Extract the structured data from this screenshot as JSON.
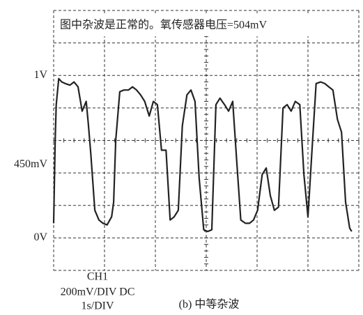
{
  "chart_data": {
    "type": "line",
    "annotation": "图中杂波是正常的。氧传感器电压=504mV",
    "channel": "CH1",
    "vertical_scale": "200mV/DIV DC",
    "time_scale": "1s/DIV",
    "caption": "(b) 中等杂波",
    "xlim": [
      0,
      6
    ],
    "ylim": [
      -0.2,
      1.4
    ],
    "xgrid": [
      0,
      1,
      2,
      3,
      4,
      5,
      6
    ],
    "ygrid": [
      -0.2,
      0,
      0.2,
      0.4,
      0.6,
      0.8,
      1,
      1.2,
      1.4
    ],
    "yticks": [
      {
        "value": 1,
        "label": "1V"
      },
      {
        "value": 0.45,
        "label": "450mV"
      },
      {
        "value": 0,
        "label": "0V"
      }
    ],
    "color": "#222222",
    "x": [
      0,
      0.03,
      0.05,
      0.1,
      0.16,
      0.23,
      0.32,
      0.4,
      0.48,
      0.56,
      0.64,
      0.68,
      0.73,
      0.81,
      0.89,
      0.97,
      1.05,
      1.14,
      1.18,
      1.22,
      1.3,
      1.38,
      1.47,
      1.55,
      1.63,
      1.71,
      1.79,
      1.88,
      1.96,
      2.04,
      2.12,
      2.21,
      2.29,
      2.37,
      2.45,
      2.53,
      2.62,
      2.7,
      2.78,
      2.86,
      2.95,
      3.03,
      3.11,
      3.19,
      3.27,
      3.36,
      3.44,
      3.52,
      3.6,
      3.68,
      3.77,
      3.85,
      3.93,
      4.01,
      4.1,
      4.18,
      4.26,
      4.34,
      4.42,
      4.51,
      4.59,
      4.67,
      4.75,
      4.84,
      4.92,
      5,
      5.08,
      5.16,
      5.25,
      5.33,
      5.41,
      5.49,
      5.58,
      5.66,
      5.74,
      5.82,
      5.86
    ],
    "values": [
      0.09,
      0.6,
      0.82,
      0.98,
      0.96,
      0.95,
      0.94,
      0.96,
      0.93,
      0.78,
      0.84,
      0.71,
      0.52,
      0.17,
      0.11,
      0.09,
      0.08,
      0.13,
      0.22,
      0.6,
      0.9,
      0.91,
      0.91,
      0.93,
      0.91,
      0.88,
      0.84,
      0.75,
      0.84,
      0.82,
      0.54,
      0.54,
      0.11,
      0.13,
      0.17,
      0.69,
      0.88,
      0.91,
      0.84,
      0.37,
      0.05,
      0.04,
      0.05,
      0.82,
      0.86,
      0.82,
      0.78,
      0.84,
      0.47,
      0.11,
      0.09,
      0.09,
      0.11,
      0.17,
      0.39,
      0.43,
      0.26,
      0.17,
      0.19,
      0.8,
      0.82,
      0.78,
      0.84,
      0.82,
      0.39,
      0.13,
      0.54,
      0.95,
      0.96,
      0.95,
      0.93,
      0.91,
      0.73,
      0.65,
      0.22,
      0.06,
      0.04
    ]
  }
}
